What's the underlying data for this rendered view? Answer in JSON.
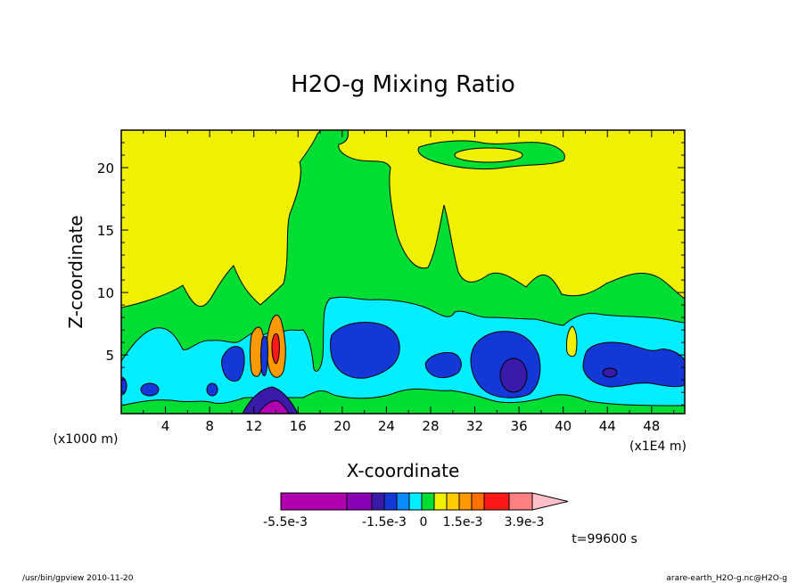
{
  "chart_data": {
    "type": "heatmap",
    "title": "H2O-g Mixing Ratio",
    "xlabel": "X-coordinate",
    "ylabel": "Z-coordinate",
    "x_unit_left": "(x1000 m)",
    "x_unit_right": "(x1E4 m)",
    "xlim": [
      0,
      51
    ],
    "ylim": [
      0.3,
      23
    ],
    "x_ticks": [
      4,
      8,
      12,
      16,
      20,
      24,
      28,
      32,
      36,
      40,
      44,
      48
    ],
    "y_ticks": [
      5,
      10,
      15,
      20
    ],
    "grid": false,
    "colorbar": {
      "colors": [
        "#b000b0",
        "#8a00b4",
        "#3a1aa8",
        "#1438d8",
        "#0a8cff",
        "#00eeff",
        "#00dd33",
        "#f0f000",
        "#ffcc00",
        "#ff9900",
        "#ff7000",
        "#ff1818",
        "#ff8080",
        "#ffc0c8"
      ],
      "labels": [
        "-5.5e-3",
        "-1.5e-3",
        "0",
        "1.5e-3",
        "3.9e-3"
      ]
    },
    "time_label": "t=99600 s"
  },
  "footer": {
    "left": "/usr/bin/gpview   2010-11-20",
    "right": "arare-earth_H2O-g.nc@H2O-g"
  }
}
